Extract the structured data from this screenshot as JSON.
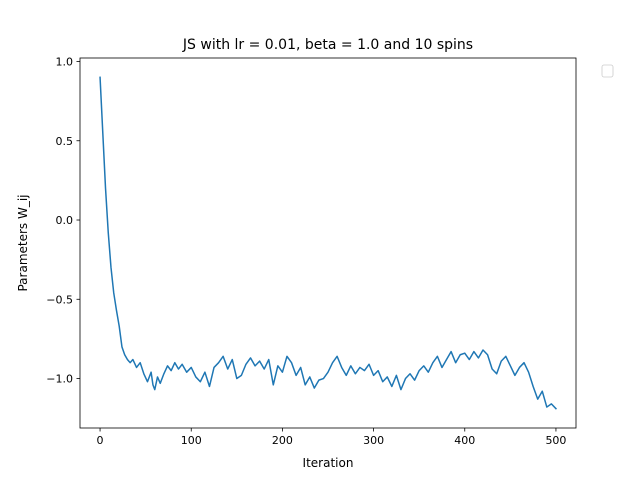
{
  "chart_data": {
    "type": "line",
    "title": "JS with lr = 0.01, beta = 1.0 and 10 spins",
    "xlabel": "Iteration",
    "ylabel": "Parameters W_ij",
    "xlim": [
      -22,
      522
    ],
    "ylim": [
      -1.312,
      1.022
    ],
    "xticks": [
      0,
      100,
      200,
      300,
      400,
      500
    ],
    "xtick_labels": [
      "0",
      "100",
      "200",
      "300",
      "400",
      "500"
    ],
    "yticks": [
      1.0,
      0.5,
      0.0,
      -0.5,
      -1.0
    ],
    "ytick_labels": [
      "1.0",
      "0.5",
      "0.0",
      "−0.5",
      "−1.0"
    ],
    "grid": false,
    "legend": {
      "location": "outside upper right",
      "entries": []
    },
    "series": [
      {
        "color": "#1f77b4",
        "x": [
          0,
          3,
          6,
          9,
          12,
          15,
          18,
          21,
          24,
          27,
          30,
          33,
          36,
          40,
          44,
          48,
          52,
          56,
          58,
          60,
          63,
          66,
          70,
          74,
          78,
          82,
          86,
          90,
          95,
          100,
          105,
          110,
          115,
          120,
          125,
          130,
          135,
          140,
          145,
          150,
          155,
          160,
          165,
          170,
          175,
          180,
          185,
          190,
          195,
          200,
          205,
          210,
          215,
          220,
          225,
          230,
          235,
          240,
          245,
          250,
          255,
          260,
          265,
          270,
          275,
          280,
          285,
          290,
          295,
          300,
          305,
          310,
          315,
          320,
          325,
          330,
          335,
          340,
          345,
          350,
          355,
          360,
          365,
          370,
          375,
          380,
          385,
          390,
          395,
          400,
          405,
          410,
          415,
          420,
          425,
          430,
          435,
          440,
          445,
          450,
          455,
          460,
          465,
          470,
          475,
          480,
          485,
          490,
          495,
          500
        ],
        "y": [
          0.9,
          0.55,
          0.2,
          -0.08,
          -0.3,
          -0.46,
          -0.57,
          -0.67,
          -0.8,
          -0.85,
          -0.88,
          -0.9,
          -0.88,
          -0.93,
          -0.9,
          -0.97,
          -1.02,
          -0.96,
          -1.04,
          -1.07,
          -0.99,
          -1.03,
          -0.97,
          -0.92,
          -0.95,
          -0.9,
          -0.94,
          -0.91,
          -0.96,
          -0.93,
          -0.99,
          -1.02,
          -0.96,
          -1.05,
          -0.93,
          -0.9,
          -0.86,
          -0.94,
          -0.88,
          -1.0,
          -0.98,
          -0.91,
          -0.87,
          -0.92,
          -0.89,
          -0.94,
          -0.88,
          -1.04,
          -0.92,
          -0.96,
          -0.86,
          -0.9,
          -0.98,
          -0.93,
          -1.04,
          -0.99,
          -1.06,
          -1.01,
          -1.0,
          -0.96,
          -0.9,
          -0.86,
          -0.93,
          -0.98,
          -0.92,
          -0.97,
          -0.93,
          -0.95,
          -0.91,
          -0.98,
          -0.95,
          -1.02,
          -0.99,
          -1.05,
          -0.98,
          -1.07,
          -1.0,
          -0.97,
          -1.01,
          -0.95,
          -0.92,
          -0.96,
          -0.9,
          -0.86,
          -0.93,
          -0.88,
          -0.83,
          -0.9,
          -0.85,
          -0.84,
          -0.88,
          -0.83,
          -0.87,
          -0.82,
          -0.85,
          -0.94,
          -0.97,
          -0.89,
          -0.86,
          -0.92,
          -0.98,
          -0.93,
          -0.9,
          -0.96,
          -1.05,
          -1.13,
          -1.08,
          -1.18,
          -1.16,
          -1.19
        ]
      }
    ]
  }
}
